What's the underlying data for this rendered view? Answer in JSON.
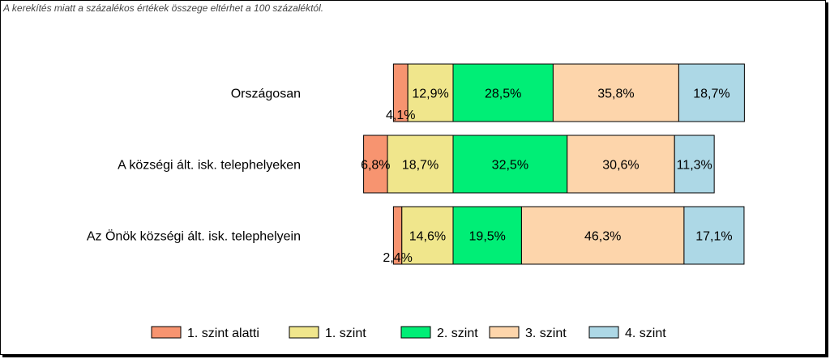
{
  "note": "A kerekítés miatt a  százalékos értékek összege eltérhet a 100 százaléktól.",
  "chart_data": {
    "type": "bar",
    "orientation": "horizontal",
    "stacked": true,
    "diverging": true,
    "categories": [
      "Országosan",
      "A községi ált. isk. telephelyeken",
      "Az Önök községi ált. isk. telephelyein"
    ],
    "series": [
      {
        "name": "1. szint alatti",
        "color": "#F79470",
        "values": [
          4.1,
          6.8,
          2.4
        ],
        "labels": [
          "4,1%",
          "6,8%",
          "2,4%"
        ]
      },
      {
        "name": "1. szint",
        "color": "#F0E68C",
        "values": [
          12.9,
          18.7,
          14.6
        ],
        "labels": [
          "12,9%",
          "18,7%",
          "14,6%"
        ]
      },
      {
        "name": "2. szint",
        "color": "#00EE76",
        "values": [
          28.5,
          32.5,
          19.5
        ],
        "labels": [
          "28,5%",
          "32,5%",
          "19,5%"
        ]
      },
      {
        "name": "3. szint",
        "color": "#FDD5AB",
        "values": [
          35.8,
          30.6,
          46.3
        ],
        "labels": [
          "35,8%",
          "30,6%",
          "46,3%"
        ]
      },
      {
        "name": "4. szint",
        "color": "#ADD8E6",
        "values": [
          18.7,
          11.3,
          17.1
        ],
        "labels": [
          "18,7%",
          "11,3%",
          "17,1%"
        ]
      }
    ],
    "baseline": "between 1. szint and 2. szint",
    "legend_position": "bottom",
    "grid": false
  }
}
